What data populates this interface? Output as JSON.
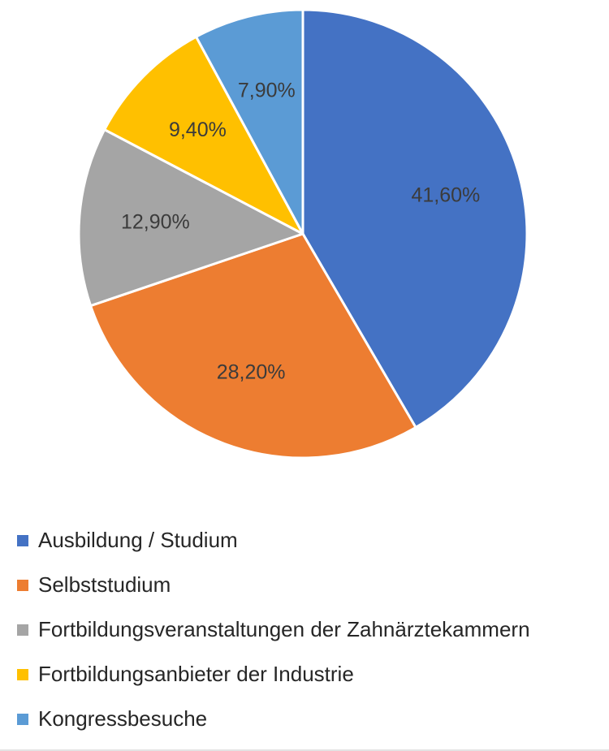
{
  "chart_data": {
    "type": "pie",
    "title": "",
    "start_angle_deg": 0,
    "direction": "clockwise",
    "legend_position": "bottom",
    "slices": [
      {
        "label": "Ausbildung / Studium",
        "value": 41.6,
        "display": "41,60%",
        "color": "#4472C4"
      },
      {
        "label": "Selbststudium",
        "value": 28.2,
        "display": "28,20%",
        "color": "#ED7D31"
      },
      {
        "label": "Fortbildungsveranstaltungen der Zahnärztekammern",
        "value": 12.9,
        "display": "12,90%",
        "color": "#A5A5A5"
      },
      {
        "label": "Fortbildungsanbieter der Industrie",
        "value": 9.4,
        "display": "9,40%",
        "color": "#FFC000"
      },
      {
        "label": "Kongressbesuche",
        "value": 7.9,
        "display": "7,90%",
        "color": "#5B9BD5"
      }
    ]
  }
}
